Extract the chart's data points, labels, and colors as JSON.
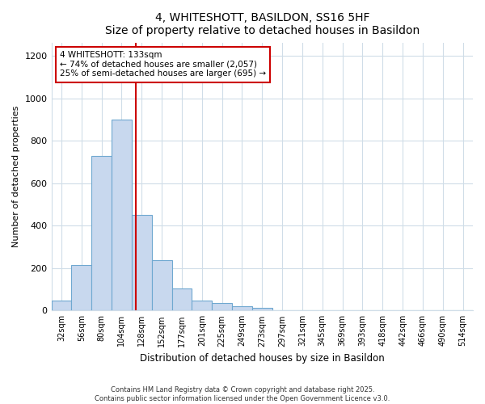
{
  "title": "4, WHITESHOTT, BASILDON, SS16 5HF",
  "subtitle": "Size of property relative to detached houses in Basildon",
  "xlabel": "Distribution of detached houses by size in Basildon",
  "ylabel": "Number of detached properties",
  "bin_labels": [
    "32sqm",
    "56sqm",
    "80sqm",
    "104sqm",
    "128sqm",
    "152sqm",
    "177sqm",
    "201sqm",
    "225sqm",
    "249sqm",
    "273sqm",
    "297sqm",
    "321sqm",
    "345sqm",
    "369sqm",
    "393sqm",
    "418sqm",
    "442sqm",
    "466sqm",
    "490sqm",
    "514sqm"
  ],
  "bar_values": [
    47,
    215,
    730,
    900,
    450,
    237,
    103,
    47,
    37,
    20,
    12,
    0,
    0,
    0,
    0,
    0,
    0,
    0,
    0,
    0,
    0
  ],
  "bar_color": "#c8d8ee",
  "bar_edge_color": "#6fa8d0",
  "property_line_color": "#cc0000",
  "annotation_title": "4 WHITESHOTT: 133sqm",
  "annotation_line1": "← 74% of detached houses are smaller (2,057)",
  "annotation_line2": "25% of semi-detached houses are larger (695) →",
  "annotation_box_color": "#ffffff",
  "annotation_box_edge": "#cc0000",
  "ylim": [
    0,
    1260
  ],
  "yticks": [
    0,
    200,
    400,
    600,
    800,
    1000,
    1200
  ],
  "footer1": "Contains HM Land Registry data © Crown copyright and database right 2025.",
  "footer2": "Contains public sector information licensed under the Open Government Licence v3.0.",
  "background_color": "#ffffff",
  "plot_bg_color": "#ffffff",
  "grid_color": "#d0dde8"
}
